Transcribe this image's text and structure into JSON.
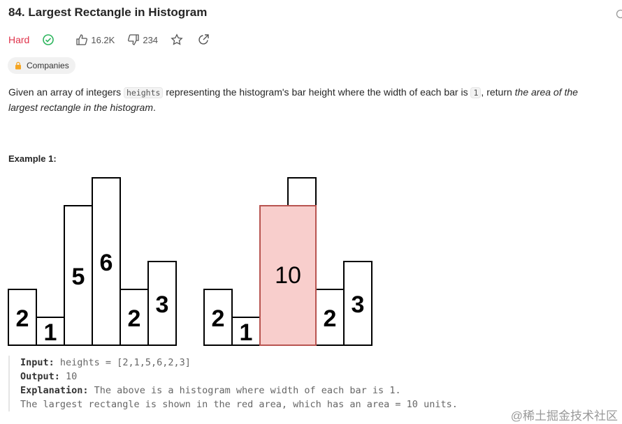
{
  "header": {
    "title": "84. Largest Rectangle in Histogram",
    "difficulty": "Hard",
    "likes": "16.2K",
    "dislikes": "234",
    "companies": "Companies"
  },
  "description": {
    "text_1": "Given an array of integers ",
    "code_1": "heights",
    "text_2": " representing the histogram's bar height where the width of each bar is ",
    "code_2": "1",
    "text_3": ", return ",
    "emphasis": "the area of the largest rectangle in the histogram",
    "text_4": "."
  },
  "example": {
    "title": "Example 1:",
    "histogram": {
      "heights": [
        2,
        1,
        5,
        6,
        2,
        3
      ],
      "largest_area": 10
    },
    "lines": [
      {
        "label": "Input:",
        "text": " heights = [2,1,5,6,2,3]"
      },
      {
        "label": "Output:",
        "text": " 10"
      },
      {
        "label": "Explanation:",
        "text": " The above is a histogram where width of each bar is 1."
      },
      {
        "label": "",
        "text": "The largest rectangle is shown in the red area, which has an area = 10 units."
      }
    ]
  },
  "watermark": "@稀土掘金技术社区"
}
